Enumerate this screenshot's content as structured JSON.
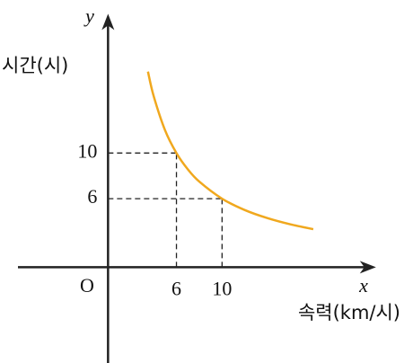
{
  "chart_data": {
    "type": "line",
    "x_axis_name": "x",
    "y_axis_name": "y",
    "origin_label": "O",
    "x_label": "속력(km/시)",
    "y_label": "시간(시)",
    "x": [
      3.5,
      4,
      5,
      6,
      7,
      8,
      10,
      12,
      14,
      16,
      18
    ],
    "series": [
      {
        "color": "#f0a81e",
        "values": [
          17.14,
          15,
          12,
          10,
          8.57,
          7.5,
          6,
          5,
          4.29,
          3.75,
          3.33
        ]
      }
    ],
    "xlim": [
      -7.9,
      23.5
    ],
    "ylim": [
      -8.4,
      22.2
    ],
    "xticks": [
      6,
      10
    ],
    "yticks": [
      6,
      10
    ],
    "guides": true
  }
}
